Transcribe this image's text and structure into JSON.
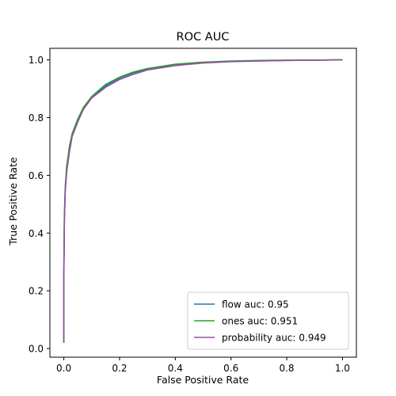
{
  "chart_data": {
    "type": "line",
    "title": "ROC AUC",
    "xlabel": "False Positive Rate",
    "ylabel": "True Positive Rate",
    "xlim": [
      -0.05,
      1.05
    ],
    "ylim": [
      -0.03,
      1.04
    ],
    "xticks": [
      0.0,
      0.2,
      0.4,
      0.6,
      0.8,
      1.0
    ],
    "yticks": [
      0.0,
      0.2,
      0.4,
      0.6,
      0.8,
      1.0
    ],
    "xtick_labels": [
      "0.0",
      "0.2",
      "0.4",
      "0.6",
      "0.8",
      "1.0"
    ],
    "ytick_labels": [
      "0.0",
      "0.2",
      "0.4",
      "0.6",
      "0.8",
      "1.0"
    ],
    "grid": false,
    "legend_position": "lower-right",
    "series": [
      {
        "name": "flow auc: 0.95",
        "color": "#1f77b4",
        "x": [
          0.0,
          0.0,
          0.002,
          0.005,
          0.01,
          0.02,
          0.03,
          0.05,
          0.07,
          0.1,
          0.15,
          0.2,
          0.25,
          0.3,
          0.4,
          0.5,
          0.6,
          0.7,
          0.8,
          0.9,
          1.0
        ],
        "y": [
          0.02,
          0.25,
          0.45,
          0.55,
          0.62,
          0.69,
          0.74,
          0.79,
          0.83,
          0.87,
          0.91,
          0.937,
          0.955,
          0.968,
          0.983,
          0.991,
          0.995,
          0.997,
          0.998,
          0.999,
          1.0
        ]
      },
      {
        "name": "ones auc: 0.951",
        "color": "#2ca02c",
        "x": [
          0.0,
          0.0,
          0.002,
          0.005,
          0.01,
          0.02,
          0.03,
          0.05,
          0.07,
          0.1,
          0.15,
          0.2,
          0.25,
          0.3,
          0.4,
          0.5,
          0.6,
          0.7,
          0.8,
          0.9,
          1.0
        ],
        "y": [
          0.02,
          0.26,
          0.46,
          0.56,
          0.63,
          0.7,
          0.745,
          0.795,
          0.835,
          0.873,
          0.915,
          0.94,
          0.958,
          0.97,
          0.985,
          0.992,
          0.996,
          0.998,
          0.999,
          0.999,
          1.0
        ]
      },
      {
        "name": "probability auc: 0.949",
        "color": "#984ea3",
        "x": [
          0.0,
          0.0,
          0.002,
          0.005,
          0.01,
          0.02,
          0.03,
          0.05,
          0.07,
          0.1,
          0.15,
          0.2,
          0.25,
          0.3,
          0.4,
          0.5,
          0.6,
          0.7,
          0.8,
          0.9,
          1.0
        ],
        "y": [
          0.02,
          0.24,
          0.44,
          0.54,
          0.61,
          0.68,
          0.735,
          0.785,
          0.828,
          0.868,
          0.905,
          0.932,
          0.95,
          0.965,
          0.98,
          0.989,
          0.994,
          0.996,
          0.998,
          0.999,
          1.0
        ]
      }
    ]
  }
}
